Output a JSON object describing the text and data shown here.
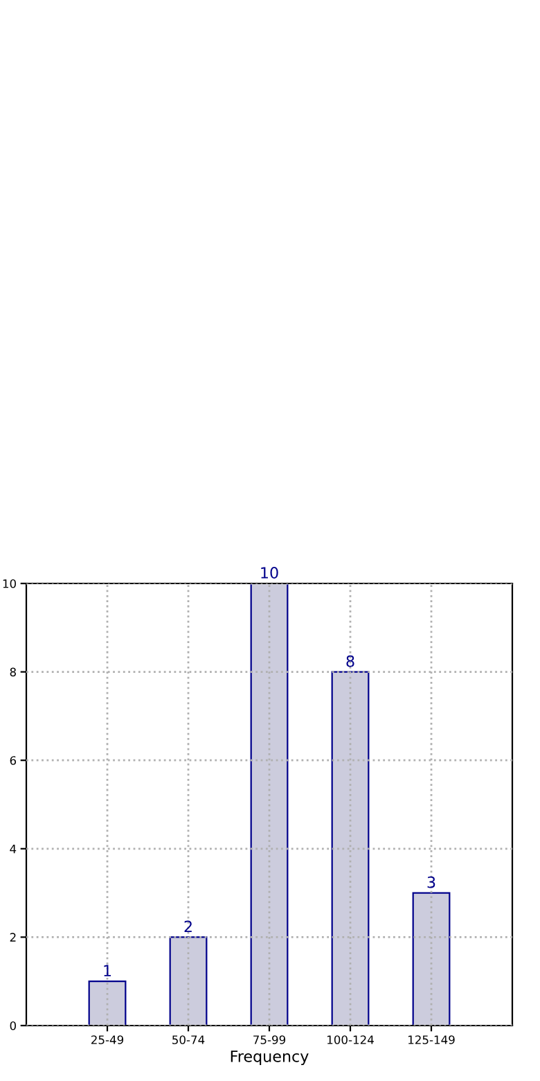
{
  "chart_data": {
    "type": "bar",
    "xlabel": "Frequency",
    "categories": [
      "25-49",
      "50-74",
      "75-99",
      "100-124",
      "125-149"
    ],
    "values": [
      1,
      2,
      10,
      8,
      3
    ],
    "color": "#ccccdd",
    "ylim": [
      0,
      10
    ],
    "yticks": [
      0,
      2,
      4,
      6,
      8,
      10
    ],
    "grid": true,
    "data_labels": true
  }
}
